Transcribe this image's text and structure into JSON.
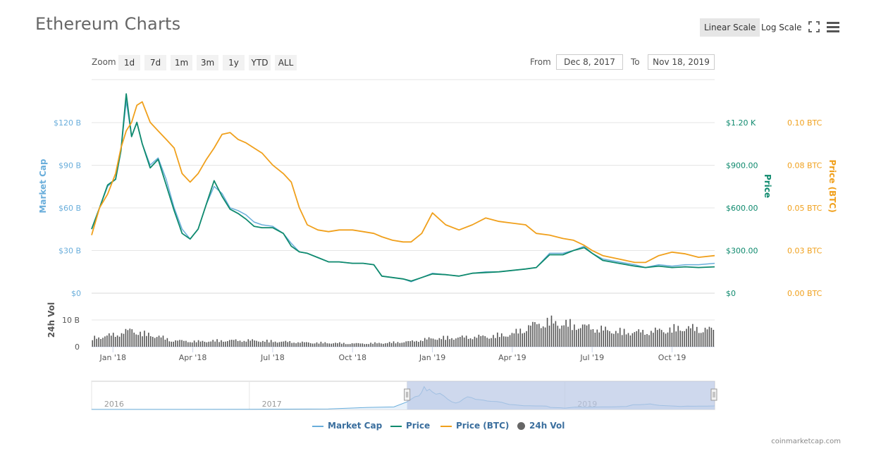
{
  "header": {
    "title": "Ethereum Charts",
    "linear_scale": "Linear Scale",
    "log_scale": "Log Scale"
  },
  "toolbar": {
    "zoom_label": "Zoom",
    "zoom_options": [
      "1d",
      "7d",
      "1m",
      "3m",
      "1y",
      "YTD",
      "ALL"
    ],
    "from_label": "From",
    "from_value": "Dec 8, 2017",
    "to_label": "To",
    "to_value": "Nov 18, 2019"
  },
  "legend": {
    "market_cap": "Market Cap",
    "price": "Price",
    "price_btc": "Price (BTC)",
    "vol": "24h Vol"
  },
  "credit": "coinmarketcap.com",
  "colors": {
    "market_cap": "#6aaedb",
    "price": "#0f8a6e",
    "price_btc": "#f0a01c",
    "volume": "#555555",
    "navigator_fill": "#b9c7e6"
  },
  "chart_data": {
    "type": "line",
    "x_ticks": [
      "Jan '18",
      "Apr '18",
      "Jul '18",
      "Oct '18",
      "Jan '19",
      "Apr '19",
      "Jul '19",
      "Oct '19"
    ],
    "x_tick_months": [
      0.8,
      3.8,
      6.8,
      9.8,
      12.8,
      15.8,
      18.8,
      21.8
    ],
    "x_range_months": [
      0,
      23.4
    ],
    "axes": {
      "market_cap": {
        "title": "Market Cap",
        "ticks": [
          "$0",
          "$30 B",
          "$60 B",
          "$90 B",
          "$120 B"
        ],
        "range": [
          0,
          150
        ]
      },
      "price": {
        "title": "Price",
        "ticks": [
          "$0",
          "$300.00",
          "$600.00",
          "$900.00",
          "$1.20 K"
        ],
        "range": [
          0,
          1500
        ]
      },
      "price_btc": {
        "title": "Price (BTC)",
        "ticks": [
          "0.00 BTC",
          "0.03 BTC",
          "0.05 BTC",
          "0.08 BTC",
          "0.10 BTC"
        ],
        "range": [
          0,
          0.125
        ]
      },
      "volume": {
        "title": "24h Vol",
        "ticks": [
          "0",
          "10 B"
        ],
        "range": [
          0,
          20
        ]
      }
    },
    "series": [
      {
        "name": "Market Cap",
        "unit": "USD billions",
        "points": [
          [
            0,
            45
          ],
          [
            0.3,
            60
          ],
          [
            0.6,
            75
          ],
          [
            0.9,
            80
          ],
          [
            1.1,
            100
          ],
          [
            1.3,
            135
          ],
          [
            1.5,
            110
          ],
          [
            1.7,
            120
          ],
          [
            1.9,
            105
          ],
          [
            2.2,
            90
          ],
          [
            2.5,
            95
          ],
          [
            2.8,
            80
          ],
          [
            3.1,
            60
          ],
          [
            3.4,
            45
          ],
          [
            3.7,
            38
          ],
          [
            4.0,
            45
          ],
          [
            4.3,
            62
          ],
          [
            4.6,
            75
          ],
          [
            4.9,
            70
          ],
          [
            5.2,
            60
          ],
          [
            5.5,
            58
          ],
          [
            5.8,
            55
          ],
          [
            6.1,
            50
          ],
          [
            6.4,
            48
          ],
          [
            6.8,
            47
          ],
          [
            7.2,
            42
          ],
          [
            7.5,
            35
          ],
          [
            7.8,
            29
          ],
          [
            8.1,
            28
          ],
          [
            8.5,
            25
          ],
          [
            8.9,
            22
          ],
          [
            9.3,
            22
          ],
          [
            9.8,
            21
          ],
          [
            10.2,
            21
          ],
          [
            10.6,
            20
          ],
          [
            10.9,
            12
          ],
          [
            11.3,
            11
          ],
          [
            11.7,
            10
          ],
          [
            12.0,
            8
          ],
          [
            12.4,
            11
          ],
          [
            12.8,
            14
          ],
          [
            13.3,
            13
          ],
          [
            13.8,
            12
          ],
          [
            14.3,
            14
          ],
          [
            14.8,
            15
          ],
          [
            15.3,
            15
          ],
          [
            15.8,
            16
          ],
          [
            16.3,
            17
          ],
          [
            16.7,
            18
          ],
          [
            17.2,
            28
          ],
          [
            17.7,
            28
          ],
          [
            18.1,
            30
          ],
          [
            18.5,
            33
          ],
          [
            18.8,
            28
          ],
          [
            19.2,
            24
          ],
          [
            19.8,
            22
          ],
          [
            20.4,
            20
          ],
          [
            20.8,
            18
          ],
          [
            21.3,
            20
          ],
          [
            21.8,
            19
          ],
          [
            22.3,
            20
          ],
          [
            22.8,
            20
          ],
          [
            23.4,
            21
          ]
        ]
      },
      {
        "name": "Price",
        "unit": "USD",
        "points": [
          [
            0,
            450
          ],
          [
            0.3,
            600
          ],
          [
            0.6,
            760
          ],
          [
            0.9,
            800
          ],
          [
            1.1,
            1000
          ],
          [
            1.3,
            1400
          ],
          [
            1.5,
            1100
          ],
          [
            1.7,
            1200
          ],
          [
            1.9,
            1050
          ],
          [
            2.2,
            880
          ],
          [
            2.5,
            940
          ],
          [
            2.8,
            760
          ],
          [
            3.1,
            580
          ],
          [
            3.4,
            420
          ],
          [
            3.7,
            380
          ],
          [
            4.0,
            450
          ],
          [
            4.3,
            620
          ],
          [
            4.6,
            790
          ],
          [
            4.9,
            680
          ],
          [
            5.2,
            590
          ],
          [
            5.5,
            560
          ],
          [
            5.8,
            520
          ],
          [
            6.1,
            470
          ],
          [
            6.4,
            460
          ],
          [
            6.8,
            460
          ],
          [
            7.2,
            420
          ],
          [
            7.5,
            330
          ],
          [
            7.8,
            290
          ],
          [
            8.1,
            280
          ],
          [
            8.5,
            250
          ],
          [
            8.9,
            220
          ],
          [
            9.3,
            220
          ],
          [
            9.8,
            210
          ],
          [
            10.2,
            210
          ],
          [
            10.6,
            200
          ],
          [
            10.9,
            120
          ],
          [
            11.3,
            110
          ],
          [
            11.7,
            100
          ],
          [
            12.0,
            85
          ],
          [
            12.4,
            110
          ],
          [
            12.8,
            135
          ],
          [
            13.3,
            130
          ],
          [
            13.8,
            120
          ],
          [
            14.3,
            140
          ],
          [
            14.8,
            145
          ],
          [
            15.3,
            150
          ],
          [
            15.8,
            160
          ],
          [
            16.3,
            170
          ],
          [
            16.7,
            180
          ],
          [
            17.2,
            270
          ],
          [
            17.7,
            270
          ],
          [
            18.1,
            300
          ],
          [
            18.5,
            320
          ],
          [
            18.8,
            280
          ],
          [
            19.2,
            230
          ],
          [
            19.8,
            210
          ],
          [
            20.4,
            190
          ],
          [
            20.8,
            180
          ],
          [
            21.3,
            190
          ],
          [
            21.8,
            180
          ],
          [
            22.3,
            185
          ],
          [
            22.8,
            180
          ],
          [
            23.4,
            185
          ]
        ]
      },
      {
        "name": "Price (BTC)",
        "unit": "BTC",
        "points": [
          [
            0,
            0.034
          ],
          [
            0.3,
            0.05
          ],
          [
            0.6,
            0.058
          ],
          [
            0.9,
            0.07
          ],
          [
            1.1,
            0.085
          ],
          [
            1.3,
            0.095
          ],
          [
            1.5,
            0.1
          ],
          [
            1.7,
            0.11
          ],
          [
            1.9,
            0.112
          ],
          [
            2.2,
            0.1
          ],
          [
            2.5,
            0.095
          ],
          [
            2.8,
            0.09
          ],
          [
            3.1,
            0.085
          ],
          [
            3.4,
            0.07
          ],
          [
            3.7,
            0.065
          ],
          [
            4.0,
            0.07
          ],
          [
            4.3,
            0.078
          ],
          [
            4.6,
            0.085
          ],
          [
            4.9,
            0.093
          ],
          [
            5.2,
            0.094
          ],
          [
            5.5,
            0.09
          ],
          [
            5.8,
            0.088
          ],
          [
            6.1,
            0.085
          ],
          [
            6.4,
            0.082
          ],
          [
            6.8,
            0.075
          ],
          [
            7.2,
            0.07
          ],
          [
            7.5,
            0.065
          ],
          [
            7.8,
            0.05
          ],
          [
            8.1,
            0.04
          ],
          [
            8.5,
            0.037
          ],
          [
            8.9,
            0.036
          ],
          [
            9.3,
            0.037
          ],
          [
            9.8,
            0.037
          ],
          [
            10.2,
            0.036
          ],
          [
            10.6,
            0.035
          ],
          [
            10.9,
            0.033
          ],
          [
            11.3,
            0.031
          ],
          [
            11.7,
            0.03
          ],
          [
            12.0,
            0.03
          ],
          [
            12.4,
            0.035
          ],
          [
            12.8,
            0.047
          ],
          [
            13.3,
            0.04
          ],
          [
            13.8,
            0.037
          ],
          [
            14.3,
            0.04
          ],
          [
            14.8,
            0.044
          ],
          [
            15.3,
            0.042
          ],
          [
            15.8,
            0.041
          ],
          [
            16.3,
            0.04
          ],
          [
            16.7,
            0.035
          ],
          [
            17.2,
            0.034
          ],
          [
            17.7,
            0.032
          ],
          [
            18.1,
            0.031
          ],
          [
            18.5,
            0.028
          ],
          [
            18.8,
            0.025
          ],
          [
            19.2,
            0.022
          ],
          [
            19.8,
            0.02
          ],
          [
            20.4,
            0.018
          ],
          [
            20.8,
            0.018
          ],
          [
            21.3,
            0.022
          ],
          [
            21.8,
            0.024
          ],
          [
            22.3,
            0.023
          ],
          [
            22.8,
            0.021
          ],
          [
            23.4,
            0.022
          ]
        ]
      },
      {
        "name": "24h Vol",
        "unit": "USD billions",
        "points": [
          [
            0,
            4
          ],
          [
            1.0,
            6
          ],
          [
            1.5,
            8
          ],
          [
            2.0,
            6
          ],
          [
            2.5,
            5
          ],
          [
            3.0,
            3
          ],
          [
            4.0,
            2.5
          ],
          [
            5.0,
            3
          ],
          [
            6.0,
            3
          ],
          [
            7.0,
            2.5
          ],
          [
            8.0,
            2
          ],
          [
            9.0,
            1.8
          ],
          [
            10.0,
            1.5
          ],
          [
            11.0,
            1.8
          ],
          [
            12.0,
            2.5
          ],
          [
            12.8,
            4
          ],
          [
            14.0,
            4.5
          ],
          [
            15.0,
            5
          ],
          [
            15.8,
            6
          ],
          [
            16.5,
            10
          ],
          [
            17.2,
            12
          ],
          [
            17.7,
            11
          ],
          [
            18.3,
            10
          ],
          [
            18.8,
            9
          ],
          [
            19.3,
            8
          ],
          [
            20.0,
            7
          ],
          [
            20.8,
            7
          ],
          [
            21.5,
            8
          ],
          [
            22.3,
            9
          ],
          [
            23.4,
            8
          ]
        ]
      }
    ],
    "navigator": {
      "labels": [
        "2016",
        "2017",
        "2018",
        "2019"
      ],
      "label_months": [
        -22.4,
        -10.4,
        1.6,
        13.6
      ],
      "range_months": [
        -24,
        23.4
      ],
      "selected_from_month": 0,
      "selected_to_month": 23.4
    }
  }
}
